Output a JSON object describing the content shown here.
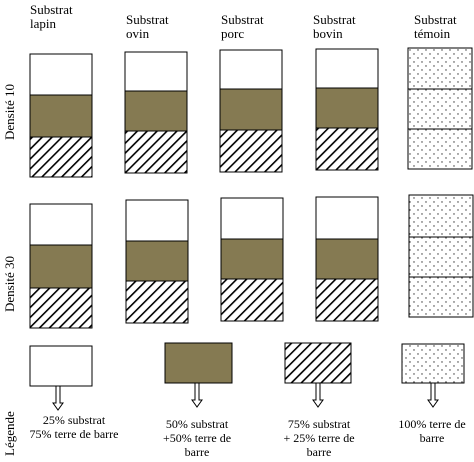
{
  "columns": [
    {
      "line1": "Substrat",
      "line2": "lapin"
    },
    {
      "line1": "Substrat",
      "line2": "ovin"
    },
    {
      "line1": "Substrat",
      "line2": "porc"
    },
    {
      "line1": "Substrat",
      "line2": "bovin"
    },
    {
      "line1": "Substrat",
      "line2": "témoin"
    }
  ],
  "rows": [
    "Densité 10",
    "Densité 30"
  ],
  "legend_title": "Légende",
  "legend": [
    {
      "line1": "25% substrat",
      "line2": "75% terre de barre",
      "line3": ""
    },
    {
      "line1": "50% substrat",
      "line2": "+50% terre de",
      "line3": "barre"
    },
    {
      "line1": "75% substrat",
      "line2": "+ 25% terre de",
      "line3": "barre"
    },
    {
      "line1": "100% terre de",
      "line2": "barre",
      "line3": ""
    }
  ],
  "colors": {
    "substrate": "#857A52",
    "outline": "#000000",
    "background": "#ffffff"
  }
}
